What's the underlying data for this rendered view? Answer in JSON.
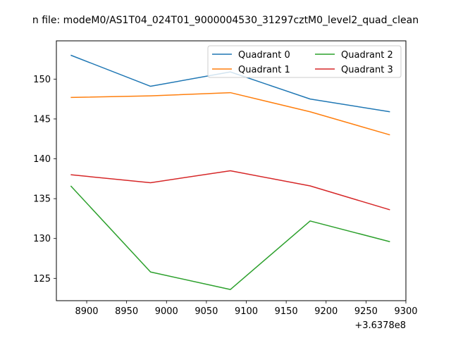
{
  "chart_data": {
    "type": "line",
    "title": "n file: modeM0/AS1T04_024T01_9000004530_31297cztM0_level2_quad_clean",
    "x_offset_label": "+3.6378e8",
    "x": [
      8880,
      8980,
      9080,
      9180,
      9280
    ],
    "xlim": [
      8862,
      9300
    ],
    "ylim": [
      122.2,
      154.8
    ],
    "xticks": [
      8900,
      8950,
      9000,
      9050,
      9100,
      9150,
      9200,
      9250,
      9300
    ],
    "yticks": [
      125,
      130,
      135,
      140,
      145,
      150
    ],
    "legend": "top-right",
    "grid": false,
    "series": [
      {
        "name": "Quadrant 0",
        "color": "#1f77b4",
        "values": [
          153.0,
          149.1,
          150.9,
          147.5,
          145.9
        ]
      },
      {
        "name": "Quadrant 1",
        "color": "#ff7f0e",
        "values": [
          147.7,
          147.9,
          148.3,
          145.9,
          143.0
        ]
      },
      {
        "name": "Quadrant 2",
        "color": "#2ca02c",
        "values": [
          136.6,
          125.8,
          123.6,
          132.2,
          129.6
        ]
      },
      {
        "name": "Quadrant 3",
        "color": "#d62728",
        "values": [
          138.0,
          137.0,
          138.5,
          136.6,
          133.6
        ]
      }
    ]
  }
}
